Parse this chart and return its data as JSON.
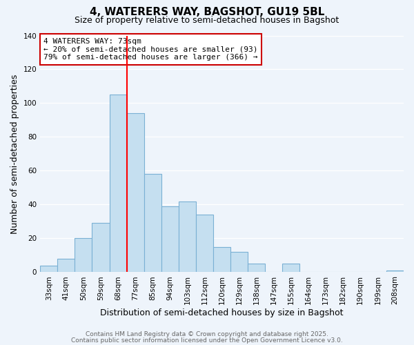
{
  "title": "4, WATERERS WAY, BAGSHOT, GU19 5BL",
  "subtitle": "Size of property relative to semi-detached houses in Bagshot",
  "xlabel": "Distribution of semi-detached houses by size in Bagshot",
  "ylabel": "Number of semi-detached properties",
  "bar_color": "#c5dff0",
  "bar_edge_color": "#7ab0d4",
  "grid_color": "white",
  "background_color": "#eef4fb",
  "bin_labels": [
    "33sqm",
    "41sqm",
    "50sqm",
    "59sqm",
    "68sqm",
    "77sqm",
    "85sqm",
    "94sqm",
    "103sqm",
    "112sqm",
    "120sqm",
    "129sqm",
    "138sqm",
    "147sqm",
    "155sqm",
    "164sqm",
    "173sqm",
    "182sqm",
    "190sqm",
    "199sqm",
    "208sqm"
  ],
  "bar_heights": [
    4,
    8,
    20,
    29,
    105,
    94,
    58,
    39,
    42,
    34,
    15,
    12,
    5,
    0,
    5,
    0,
    0,
    0,
    0,
    0,
    1
  ],
  "ylim": [
    0,
    140
  ],
  "yticks": [
    0,
    20,
    40,
    60,
    80,
    100,
    120,
    140
  ],
  "property_line_bin": 4,
  "property_label": "4 WATERERS WAY: 73sqm",
  "annotation_line1": "← 20% of semi-detached houses are smaller (93)",
  "annotation_line2": "79% of semi-detached houses are larger (366) →",
  "footer1": "Contains HM Land Registry data © Crown copyright and database right 2025.",
  "footer2": "Contains public sector information licensed under the Open Government Licence v3.0.",
  "title_fontsize": 11,
  "subtitle_fontsize": 9,
  "axis_label_fontsize": 9,
  "tick_fontsize": 7.5,
  "annotation_fontsize": 8,
  "footer_fontsize": 6.5
}
